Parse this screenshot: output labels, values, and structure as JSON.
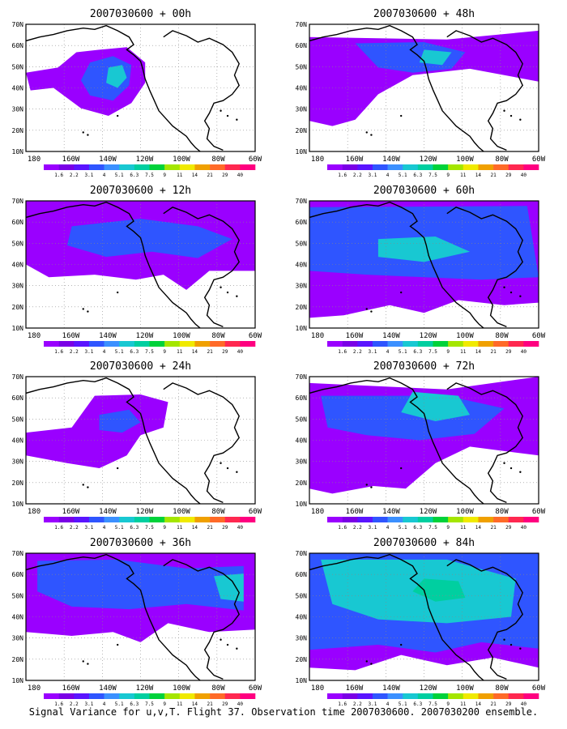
{
  "figure": {
    "caption": "Signal Variance for u,v,T. Flight 37. Observation time 2007030600. 2007030200 ensemble.",
    "colorbar_labels": [
      "1.6",
      "2.2",
      "3.1",
      "4",
      "5.1",
      "6.3",
      "7.5",
      "9",
      "11",
      "14",
      "21",
      "29",
      "40"
    ],
    "colorbar_colors": [
      "#9a00ff",
      "#7a00e6",
      "#5a14ff",
      "#2f55ff",
      "#3b90ff",
      "#18c8d2",
      "#00cfa0",
      "#00d23a",
      "#a4e600",
      "#f0ea00",
      "#f0a000",
      "#ff6a28",
      "#ff2850",
      "#ff0080"
    ],
    "x_ticks": [
      "180",
      "160W",
      "140W",
      "120W",
      "100W",
      "80W",
      "60W"
    ],
    "y_ticks": [
      "10N",
      "20N",
      "30N",
      "40N",
      "50N",
      "60N",
      "70N"
    ],
    "panels": [
      {
        "title": "2007030600 + 00h",
        "level": 0
      },
      {
        "title": "2007030600 + 48h",
        "level": 4
      },
      {
        "title": "2007030600 + 12h",
        "level": 1
      },
      {
        "title": "2007030600 + 60h",
        "level": 5
      },
      {
        "title": "2007030600 + 24h",
        "level": 2
      },
      {
        "title": "2007030600 + 72h",
        "level": 6
      },
      {
        "title": "2007030600 + 36h",
        "level": 3
      },
      {
        "title": "2007030600 + 84h",
        "level": 7
      }
    ]
  }
}
